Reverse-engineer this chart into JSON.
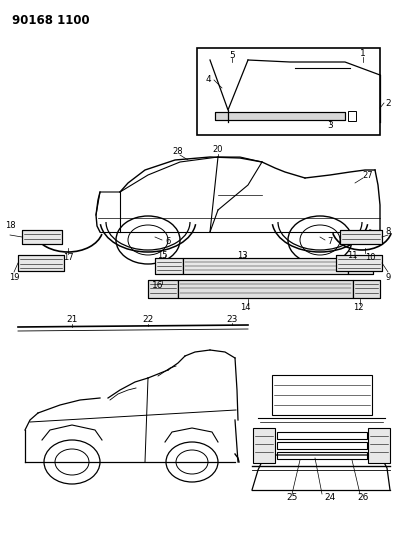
{
  "background_color": "#ffffff",
  "text_color": "#000000",
  "fig_width": 3.93,
  "fig_height": 5.33,
  "dpi": 100,
  "header_text": "90168 1100"
}
